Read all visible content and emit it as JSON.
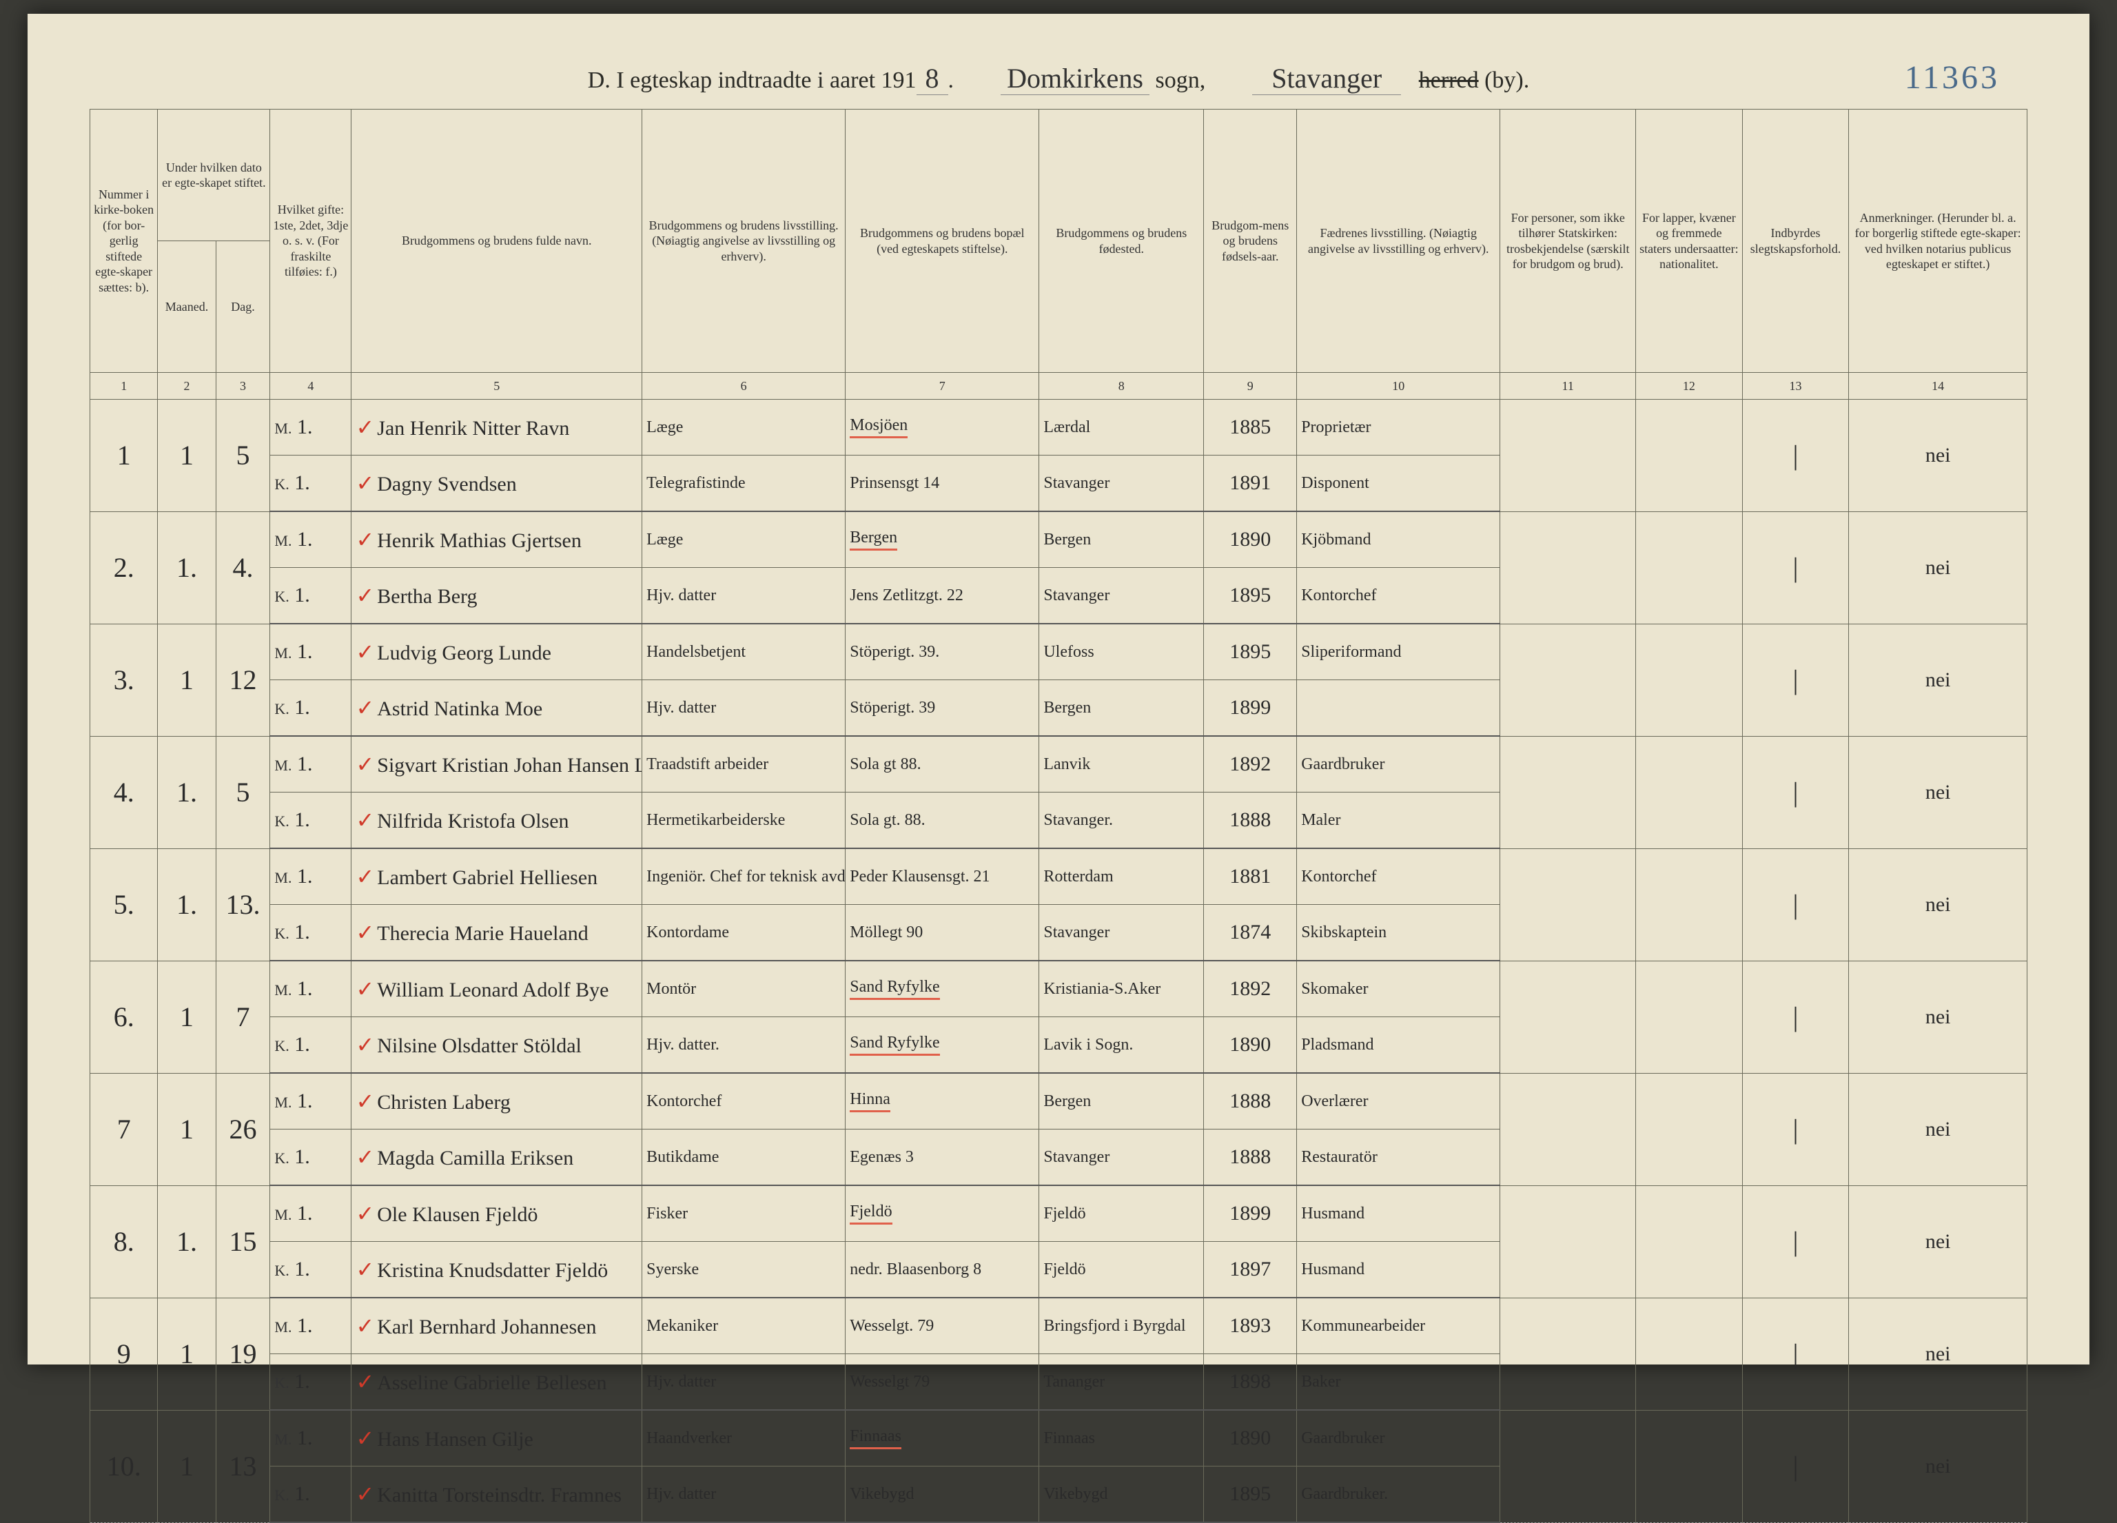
{
  "page_number": "11363",
  "title": {
    "prefix": "D.  I egteskap indtraadte i aaret 191",
    "year_suffix": "8",
    "sogn_label": "sogn,",
    "sogn": "Domkirkens",
    "herred_struck": "herred",
    "by_label": "(by).",
    "by": "Stavanger"
  },
  "columns": {
    "c1": "Nummer i kirke-boken (for bor-gerlig stiftede egte-skaper sættes: b).",
    "c2_top": "Under hvilken dato er egte-skapet stiftet.",
    "c2a": "Maaned.",
    "c2b": "Dag.",
    "c3": "Hvilket gifte: 1ste, 2det, 3dje o. s. v. (For fraskilte tilføies: f.)",
    "c4": "Brudgommens og brudens fulde navn.",
    "c5": "Brudgommens og brudens livsstilling. (Nøiagtig angivelse av livsstilling og erhverv).",
    "c6": "Brudgommens og brudens bopæl (ved egteskapets stiftelse).",
    "c7": "Brudgommens og brudens fødested.",
    "c8": "Brudgom-mens og brudens fødsels-aar.",
    "c9": "Fædrenes livsstilling. (Nøiagtig angivelse av livsstilling og erhverv).",
    "c10": "For personer, som ikke tilhører Statskirken: trosbekjendelse (særskilt for brudgom og brud).",
    "c11": "For lapper, kvæner og fremmede staters undersaatter: nationalitet.",
    "c12": "Indbyrdes slegtskapsforhold.",
    "c13": "Anmerkninger. (Herunder bl. a. for borgerlig stiftede egte-skaper: ved hvilken notarius publicus egteskapet er stiftet.)"
  },
  "colnums": [
    "1",
    "2",
    "3",
    "4",
    "5",
    "6",
    "7",
    "8",
    "9",
    "10",
    "11",
    "12",
    "13",
    "14"
  ],
  "col_widths_pct": [
    3.5,
    3.0,
    2.8,
    4.2,
    15.0,
    10.5,
    10.0,
    8.5,
    4.8,
    10.5,
    7.0,
    5.5,
    5.5,
    9.2
  ],
  "rows": [
    {
      "num": "1",
      "month": "1",
      "day": "5",
      "groom": {
        "mk": "M.",
        "gifte": "1.",
        "check": true,
        "name": "Jan Henrik Nitter Ravn",
        "occ": "Læge",
        "addr": "Mosjöen",
        "addr_red": true,
        "birthplace": "Lærdal",
        "year": "1885",
        "father": "Proprietær"
      },
      "bride": {
        "mk": "K.",
        "gifte": "1.",
        "check": true,
        "name": "Dagny Svendsen",
        "occ": "Telegrafistinde",
        "addr": "Prinsensgt 14",
        "birthplace": "Stavanger",
        "year": "1891",
        "father": "Disponent"
      },
      "c12_tick": "|",
      "remark": "nei"
    },
    {
      "num": "2.",
      "month": "1.",
      "day": "4.",
      "groom": {
        "mk": "M.",
        "gifte": "1.",
        "check": true,
        "name": "Henrik Mathias Gjertsen",
        "occ": "Læge",
        "addr": "Bergen",
        "addr_red": true,
        "birthplace": "Bergen",
        "year": "1890",
        "father": "Kjöbmand"
      },
      "bride": {
        "mk": "K.",
        "gifte": "1.",
        "check": true,
        "name": "Bertha Berg",
        "occ": "Hjv. datter",
        "addr": "Jens Zetlitzgt. 22",
        "birthplace": "Stavanger",
        "year": "1895",
        "father": "Kontorchef"
      },
      "c12_tick": "|",
      "remark": "nei"
    },
    {
      "num": "3.",
      "month": "1",
      "day": "12",
      "groom": {
        "mk": "M.",
        "gifte": "1.",
        "check": true,
        "name": "Ludvig Georg Lunde",
        "occ": "Handelsbetjent",
        "addr": "Stöperigt. 39.",
        "birthplace": "Ulefoss",
        "year": "1895",
        "father": "Sliperiformand"
      },
      "bride": {
        "mk": "K.",
        "gifte": "1.",
        "check": true,
        "name": "Astrid Natinka Moe",
        "occ": "Hjv. datter",
        "addr": "Stöperigt. 39",
        "birthplace": "Bergen",
        "year": "1899",
        "father": ""
      },
      "c12_tick": "|",
      "remark": "nei"
    },
    {
      "num": "4.",
      "month": "1.",
      "day": "5",
      "groom": {
        "mk": "M.",
        "gifte": "1.",
        "check": true,
        "name": "Sigvart Kristian Johan Hansen Lökhelle",
        "occ": "Traadstift arbeider",
        "addr": "Sola gt 88.",
        "birthplace": "Lanvik",
        "year": "1892",
        "father": "Gaardbruker"
      },
      "bride": {
        "mk": "K.",
        "gifte": "1.",
        "check": true,
        "name": "Nilfrida Kristofa Olsen",
        "occ": "Hermetikarbeiderske",
        "addr": "Sola gt. 88.",
        "birthplace": "Stavanger.",
        "year": "1888",
        "father": "Maler"
      },
      "c12_tick": "|",
      "remark": "nei"
    },
    {
      "num": "5.",
      "month": "1.",
      "day": "13.",
      "groom": {
        "mk": "M.",
        "gifte": "1.",
        "check": true,
        "name": "Lambert Gabriel Helliesen",
        "occ": "Ingeniör. Chef for teknisk avdeling av petroliumsselskap",
        "occ_small": true,
        "addr": "Peder Klausensgt. 21",
        "birthplace": "Rotterdam",
        "year": "1881",
        "father": "Kontorchef"
      },
      "bride": {
        "mk": "K.",
        "gifte": "1.",
        "check": true,
        "name": "Therecia Marie Haueland",
        "occ": "Kontordame",
        "addr": "Möllegt 90",
        "birthplace": "Stavanger",
        "year": "1874",
        "father": "Skibskaptein"
      },
      "c12_tick": "|",
      "remark": "nei"
    },
    {
      "num": "6.",
      "month": "1",
      "day": "7",
      "groom": {
        "mk": "M.",
        "gifte": "1.",
        "check": true,
        "name": "William Leonard Adolf Bye",
        "occ": "Montör",
        "addr": "Sand Ryfylke",
        "addr_red": true,
        "birthplace": "Kristiania-S.Aker",
        "year": "1892",
        "father": "Skomaker"
      },
      "bride": {
        "mk": "K.",
        "gifte": "1.",
        "check": true,
        "name": "Nilsine Olsdatter Stöldal",
        "occ": "Hjv. datter.",
        "addr": "Sand Ryfylke",
        "addr_red": true,
        "birthplace": "Lavik i Sogn.",
        "year": "1890",
        "father": "Pladsmand"
      },
      "c12_tick": "|",
      "remark": "nei"
    },
    {
      "num": "7",
      "month": "1",
      "day": "26",
      "groom": {
        "mk": "M.",
        "gifte": "1.",
        "check": true,
        "name": "Christen Laberg",
        "occ": "Kontorchef",
        "addr": "Hinna",
        "addr_red": true,
        "birthplace": "Bergen",
        "year": "1888",
        "father": "Overlærer"
      },
      "bride": {
        "mk": "K.",
        "gifte": "1.",
        "check": true,
        "name": "Magda Camilla Eriksen",
        "occ": "Butikdame",
        "addr": "Egenæs 3",
        "birthplace": "Stavanger",
        "year": "1888",
        "father": "Restauratör"
      },
      "c12_tick": "|",
      "remark": "nei"
    },
    {
      "num": "8.",
      "month": "1.",
      "day": "15",
      "groom": {
        "mk": "M.",
        "gifte": "1.",
        "check": true,
        "name": "Ole Klausen Fjeldö",
        "occ": "Fisker",
        "addr": "Fjeldö",
        "addr_red": true,
        "birthplace": "Fjeldö",
        "year": "1899",
        "father": "Husmand"
      },
      "bride": {
        "mk": "K.",
        "gifte": "1.",
        "check": true,
        "name": "Kristina Knudsdatter Fjeldö",
        "occ": "Syerske",
        "addr": "nedr. Blaasenborg 8",
        "birthplace": "Fjeldö",
        "year": "1897",
        "father": "Husmand"
      },
      "c12_tick": "|",
      "remark": "nei"
    },
    {
      "num": "9",
      "month": "1",
      "day": "19",
      "groom": {
        "mk": "M.",
        "gifte": "1.",
        "check": true,
        "name": "Karl Bernhard Johannesen",
        "occ": "Mekaniker",
        "addr": "Wesselgt. 79",
        "birthplace": "Bringsfjord i Byrgdal",
        "year": "1893",
        "father": "Kommunearbeider"
      },
      "bride": {
        "mk": "K.",
        "gifte": "1.",
        "check": true,
        "name": "Asseline Gabrielle Bellesen",
        "occ": "Hjv. datter",
        "addr": "Wesselgt 79",
        "birthplace": "Tananger",
        "year": "1898",
        "father": "Baker"
      },
      "c12_tick": "|",
      "remark": "nei"
    },
    {
      "num": "10.",
      "month": "1",
      "day": "13",
      "groom": {
        "mk": "M.",
        "gifte": "1.",
        "check": true,
        "name": "Hans Hansen Gilje",
        "occ": "Haandverker",
        "addr": "Finnaas",
        "addr_red": true,
        "birthplace": "Finnaas",
        "year": "1890",
        "father": "Gaardbruker"
      },
      "bride": {
        "mk": "K.",
        "gifte": "1.",
        "check": true,
        "name": "Kanitta Torsteinsdtr. Framnes",
        "occ": "Hjv. datter",
        "addr": "Vikebygd",
        "birthplace": "Vikebygd",
        "year": "1895",
        "father": "Gaardbruker."
      },
      "c12_tick": "|",
      "remark": "nei"
    }
  ]
}
